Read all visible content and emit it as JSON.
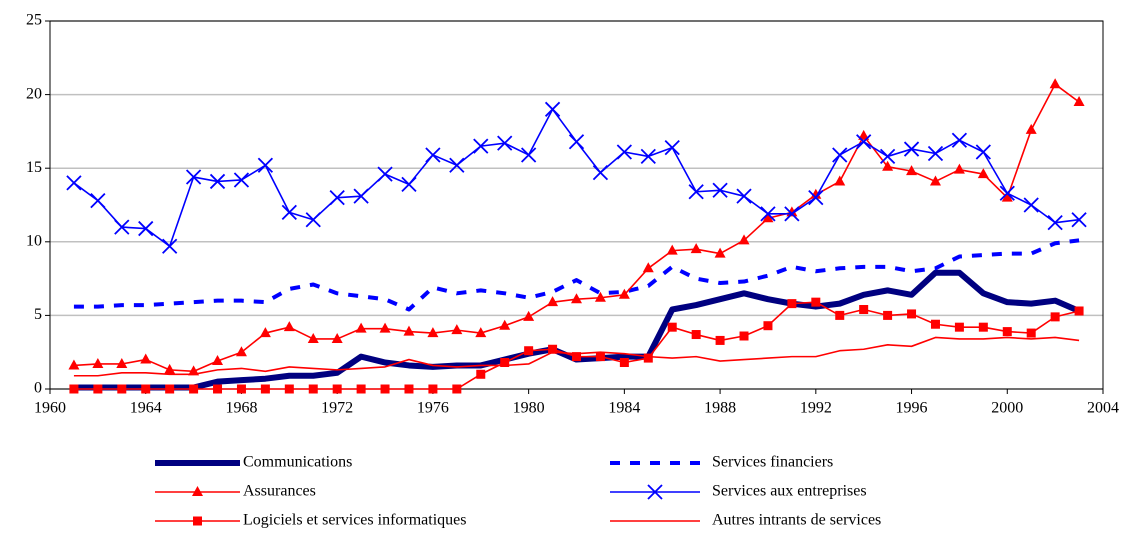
{
  "chart_data": {
    "type": "line",
    "x": [
      1961,
      1962,
      1963,
      1964,
      1965,
      1966,
      1967,
      1968,
      1969,
      1970,
      1971,
      1972,
      1973,
      1974,
      1975,
      1976,
      1977,
      1978,
      1979,
      1980,
      1981,
      1982,
      1983,
      1984,
      1985,
      1986,
      1987,
      1988,
      1989,
      1990,
      1991,
      1992,
      1993,
      1994,
      1995,
      1996,
      1997,
      1998,
      1999,
      2000,
      2001,
      2002,
      2003
    ],
    "xlim": [
      1960,
      2004
    ],
    "xticks": [
      1960,
      1964,
      1968,
      1972,
      1976,
      1980,
      1984,
      1988,
      1992,
      1996,
      2000,
      2004
    ],
    "ylim": [
      0,
      25
    ],
    "yticks": [
      0,
      5,
      10,
      15,
      20,
      25
    ],
    "grid": true,
    "legend": "bottom",
    "series": [
      {
        "name": "Communications",
        "color": "#000080",
        "line_style": "thick",
        "marker": "none",
        "values": [
          0.1,
          0.1,
          0.1,
          0.1,
          0.1,
          0.1,
          0.5,
          0.6,
          0.7,
          0.9,
          0.9,
          1.1,
          2.2,
          1.8,
          1.6,
          1.5,
          1.6,
          1.6,
          2.0,
          2.4,
          2.7,
          2.0,
          2.1,
          2.2,
          2.2,
          5.4,
          5.7,
          6.1,
          6.5,
          6.1,
          5.8,
          5.6,
          5.8,
          6.4,
          6.7,
          6.4,
          7.9,
          7.9,
          6.5,
          5.9,
          5.8,
          6.0,
          5.3
        ]
      },
      {
        "name": "Services financiers",
        "color": "#0000ff",
        "line_style": "dashed",
        "marker": "none",
        "values": [
          5.6,
          5.6,
          5.7,
          5.7,
          5.8,
          5.9,
          6.0,
          6.0,
          5.9,
          6.8,
          7.1,
          6.5,
          6.3,
          6.1,
          5.4,
          6.9,
          6.5,
          6.7,
          6.5,
          6.2,
          6.6,
          7.4,
          6.5,
          6.6,
          7.0,
          8.3,
          7.5,
          7.2,
          7.3,
          7.7,
          8.3,
          8.0,
          8.2,
          8.3,
          8.3,
          8.0,
          8.2,
          9.0,
          9.1,
          9.2,
          9.2,
          9.9,
          10.1
        ]
      },
      {
        "name": "Assurances",
        "color": "#ff0000",
        "line_style": "solid",
        "marker": "triangle",
        "values": [
          1.6,
          1.7,
          1.7,
          2.0,
          1.3,
          1.2,
          1.9,
          2.5,
          3.8,
          4.2,
          3.4,
          3.4,
          4.1,
          4.1,
          3.9,
          3.8,
          4.0,
          3.8,
          4.3,
          4.9,
          5.9,
          6.1,
          6.2,
          6.4,
          8.2,
          9.4,
          9.5,
          9.2,
          10.1,
          11.6,
          12.0,
          13.2,
          14.1,
          17.2,
          15.1,
          14.8,
          14.1,
          14.9,
          14.6,
          13.0,
          17.6,
          20.7,
          19.5
        ]
      },
      {
        "name": "Services aux entreprises",
        "color": "#0000ff",
        "line_style": "solid",
        "marker": "x",
        "values": [
          14.0,
          12.8,
          11.0,
          10.9,
          9.7,
          14.4,
          14.1,
          14.2,
          15.2,
          12.0,
          11.5,
          13.0,
          13.1,
          14.6,
          13.9,
          15.9,
          15.2,
          16.5,
          16.7,
          15.9,
          19.0,
          16.8,
          14.7,
          16.1,
          15.8,
          16.4,
          13.4,
          13.5,
          13.1,
          11.9,
          11.9,
          13.0,
          15.9,
          16.8,
          15.8,
          16.3,
          16.0,
          16.9,
          16.1,
          13.3,
          12.5,
          11.3,
          11.5
        ]
      },
      {
        "name": "Logiciels et services informatiques",
        "color": "#ff0000",
        "line_style": "solid",
        "marker": "square",
        "values": [
          0,
          0,
          0,
          0,
          0,
          0,
          0,
          0,
          0,
          0,
          0,
          0,
          0,
          0,
          0,
          0,
          0,
          1.0,
          1.8,
          2.6,
          2.7,
          2.2,
          2.2,
          1.8,
          2.1,
          4.2,
          3.7,
          3.3,
          3.6,
          4.3,
          5.8,
          5.9,
          5.0,
          5.4,
          5.0,
          5.1,
          4.4,
          4.2,
          4.2,
          3.9,
          3.8,
          4.9,
          5.3
        ]
      },
      {
        "name": "Autres intrants de services",
        "color": "#ff0000",
        "line_style": "solid",
        "marker": "none",
        "values": [
          0.9,
          0.9,
          1.1,
          1.1,
          1.0,
          1.0,
          1.3,
          1.4,
          1.2,
          1.5,
          1.4,
          1.3,
          1.4,
          1.5,
          2.0,
          1.6,
          1.5,
          1.6,
          1.6,
          1.7,
          2.5,
          2.4,
          2.5,
          2.4,
          2.2,
          2.1,
          2.2,
          1.9,
          2.0,
          2.1,
          2.2,
          2.2,
          2.6,
          2.7,
          3.0,
          2.9,
          3.5,
          3.4,
          3.4,
          3.5,
          3.4,
          3.5,
          3.3
        ]
      }
    ]
  }
}
